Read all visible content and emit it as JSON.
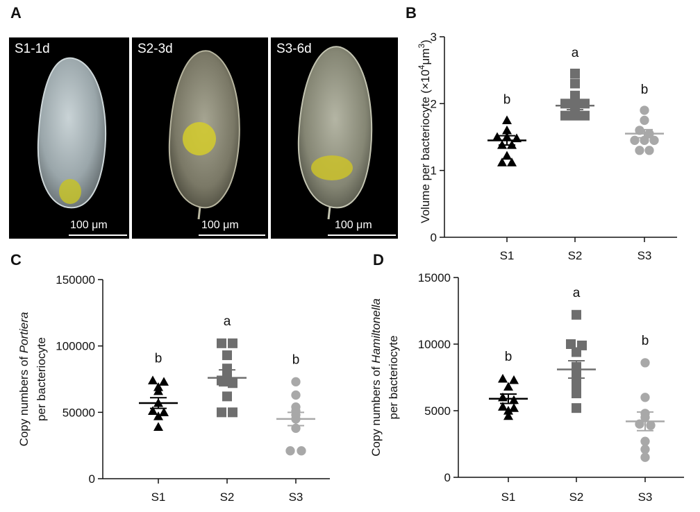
{
  "panels": {
    "A": {
      "letter": "A",
      "images": [
        {
          "stage": "S1-1d",
          "scale": "100 μm"
        },
        {
          "stage": "S2-3d",
          "scale": "100 μm"
        },
        {
          "stage": "S3-6d",
          "scale": "100 μm"
        }
      ]
    },
    "B": {
      "letter": "B"
    },
    "C": {
      "letter": "C"
    },
    "D": {
      "letter": "D"
    }
  },
  "colors": {
    "S1": "#000000",
    "S2": "#6e6e6e",
    "S3": "#a8a8a8",
    "axis": "#111111"
  },
  "chart_data": [
    {
      "id": "B",
      "type": "scatter",
      "title": "",
      "ylabel": "Volume per bacteriocyte (×10⁴μm³)",
      "ylabel_parts": [
        "Volume per bacteriocyte (×10",
        "4",
        "μm",
        "3",
        ")"
      ],
      "categories": [
        "S1",
        "S2",
        "S3"
      ],
      "ylim": [
        0,
        3
      ],
      "yticks": [
        0,
        1,
        2,
        3
      ],
      "ytick_labels": [
        "0",
        "1",
        "2",
        "3"
      ],
      "markers": [
        "triangle",
        "square",
        "circle"
      ],
      "series": [
        {
          "name": "S1",
          "values": [
            1.75,
            1.6,
            1.5,
            1.5,
            1.48,
            1.38,
            1.38,
            1.22,
            1.12,
            1.12
          ],
          "mean": 1.45,
          "sem": 0.07,
          "letter": "b"
        },
        {
          "name": "S2",
          "values": [
            2.45,
            2.3,
            2.12,
            2.0,
            2.0,
            2.0,
            1.9,
            1.82,
            1.82,
            1.82
          ],
          "mean": 1.97,
          "sem": 0.06,
          "letter": "a"
        },
        {
          "name": "S3",
          "values": [
            1.9,
            1.75,
            1.6,
            1.55,
            1.45,
            1.45,
            1.45,
            1.3,
            1.3
          ],
          "mean": 1.55,
          "sem": 0.06,
          "letter": "b"
        }
      ]
    },
    {
      "id": "C",
      "type": "scatter",
      "title": "",
      "ylabel": "Copy numbers of Portiera per bacteriocyte",
      "ylabel_parts": [
        "Copy numbers of ",
        "Portiera",
        "per bacteriocyte"
      ],
      "categories": [
        "S1",
        "S2",
        "S3"
      ],
      "ylim": [
        0,
        150000
      ],
      "yticks": [
        0,
        50000,
        100000,
        150000
      ],
      "ytick_labels": [
        "0",
        "50000",
        "100000",
        "150000"
      ],
      "markers": [
        "triangle",
        "square",
        "circle"
      ],
      "series": [
        {
          "name": "S1",
          "values": [
            74000,
            73000,
            69000,
            66000,
            57000,
            51000,
            50000,
            47000,
            39000
          ],
          "mean": 57000,
          "sem": 4000,
          "letter": "b"
        },
        {
          "name": "S2",
          "values": [
            102000,
            102000,
            93000,
            83000,
            78000,
            74000,
            72000,
            62000,
            50000,
            50000
          ],
          "mean": 76000,
          "sem": 6000,
          "letter": "a"
        },
        {
          "name": "S3",
          "values": [
            73000,
            63000,
            54000,
            51000,
            48000,
            45000,
            38000,
            21000,
            21000
          ],
          "mean": 45000,
          "sem": 5000,
          "letter": "b"
        }
      ]
    },
    {
      "id": "D",
      "type": "scatter",
      "title": "",
      "ylabel": "Copy numbers of Hamiltonella per bacteriocyte",
      "ylabel_parts": [
        "Copy numbers of ",
        "Hamiltonella",
        "per bacteriocyte"
      ],
      "categories": [
        "S1",
        "S2",
        "S3"
      ],
      "ylim": [
        0,
        15000
      ],
      "yticks": [
        0,
        5000,
        10000,
        15000
      ],
      "ytick_labels": [
        "0",
        "5000",
        "10000",
        "15000"
      ],
      "markers": [
        "triangle",
        "square",
        "circle"
      ],
      "series": [
        {
          "name": "S1",
          "values": [
            7400,
            7300,
            6800,
            6000,
            5800,
            5300,
            5200,
            5000,
            4600
          ],
          "mean": 5900,
          "sem": 350,
          "letter": "b"
        },
        {
          "name": "S2",
          "values": [
            12200,
            10000,
            9900,
            9400,
            8300,
            8000,
            7600,
            7000,
            6300,
            5200
          ],
          "mean": 8100,
          "sem": 650,
          "letter": "a"
        },
        {
          "name": "S3",
          "values": [
            8600,
            6000,
            4800,
            4500,
            4000,
            3900,
            2700,
            2100,
            1500
          ],
          "mean": 4200,
          "sem": 700,
          "letter": "b"
        }
      ]
    }
  ]
}
